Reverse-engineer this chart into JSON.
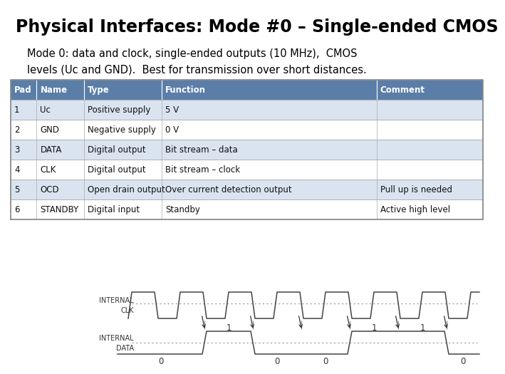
{
  "title": "Physical Interfaces: Mode #0 – Single-ended CMOS",
  "description": "Mode 0: data and clock, single-ended outputs (10 MHz),  CMOS\nlevels (Uc and GND).  Best for transmission over short distances.",
  "table_header": [
    "Pad",
    "Name",
    "Type",
    "Function",
    "Comment"
  ],
  "table_header_color": "#5b7ea8",
  "table_row_color_odd": "#d9e4f0",
  "table_row_color_even": "#ffffff",
  "table_rows": [
    [
      "1",
      "Uc",
      "Positive supply",
      "5 V",
      ""
    ],
    [
      "2",
      "GND",
      "Negative supply",
      "0 V",
      ""
    ],
    [
      "3",
      "DATA",
      "Digital output",
      "Bit stream – data",
      ""
    ],
    [
      "4",
      "CLK",
      "Digital output",
      "Bit stream – clock",
      ""
    ],
    [
      "5",
      "OCD",
      "Open drain output",
      "Over current detection output",
      "Pull up is needed"
    ],
    [
      "6",
      "STANDBY",
      "Digital input",
      "Standby",
      "Active high level"
    ]
  ],
  "col_proportions": [
    0.055,
    0.1,
    0.165,
    0.455,
    0.225
  ],
  "bg_color": "#ffffff",
  "signal_color": "#444444",
  "dashed_color": "#999999",
  "data_bits": [
    0,
    1,
    0,
    0,
    1,
    1,
    0
  ]
}
